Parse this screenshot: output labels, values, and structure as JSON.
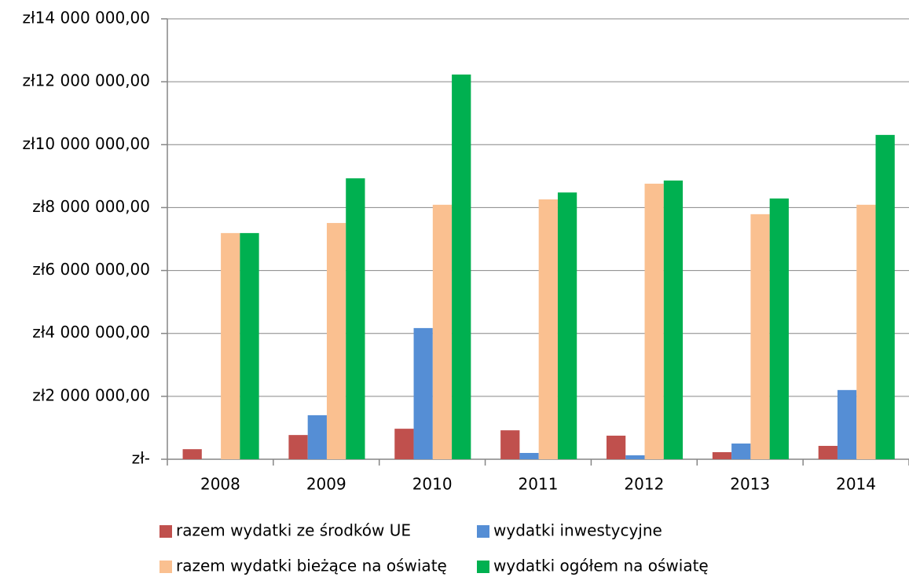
{
  "chart_data": {
    "type": "bar",
    "categories": [
      "2008",
      "2009",
      "2010",
      "2011",
      "2012",
      "2013",
      "2014"
    ],
    "series": [
      {
        "name": "razem wydatki ze środków UE",
        "color": "#c0504d",
        "values": [
          320000,
          770000,
          970000,
          920000,
          750000,
          225000,
          425000
        ]
      },
      {
        "name": "wydatki inwestycyjne",
        "color": "#558ed5",
        "values": [
          0,
          1400000,
          4170000,
          200000,
          125000,
          500000,
          2200000
        ]
      },
      {
        "name": "razem wydatki bieżące na oświatę",
        "color": "#fac090",
        "values": [
          7190000,
          7510000,
          8090000,
          8260000,
          8760000,
          7790000,
          8090000
        ]
      },
      {
        "name": "wydatki ogółem na oświatę",
        "color": "#00b050",
        "values": [
          7190000,
          8930000,
          12230000,
          8480000,
          8860000,
          8290000,
          10310000
        ]
      }
    ],
    "ylim": [
      0,
      14000000
    ],
    "yticks": [
      {
        "value": 0,
        "label": "zł-"
      },
      {
        "value": 2000000,
        "label": "zł2 000 000,00"
      },
      {
        "value": 4000000,
        "label": "zł4 000 000,00"
      },
      {
        "value": 6000000,
        "label": "zł6 000 000,00"
      },
      {
        "value": 8000000,
        "label": "zł8 000 000,00"
      },
      {
        "value": 10000000,
        "label": "zł10 000 000,00"
      },
      {
        "value": 12000000,
        "label": "zł12 000 000,00"
      },
      {
        "value": 14000000,
        "label": "zł14 000 000,00"
      }
    ],
    "grid": true
  }
}
